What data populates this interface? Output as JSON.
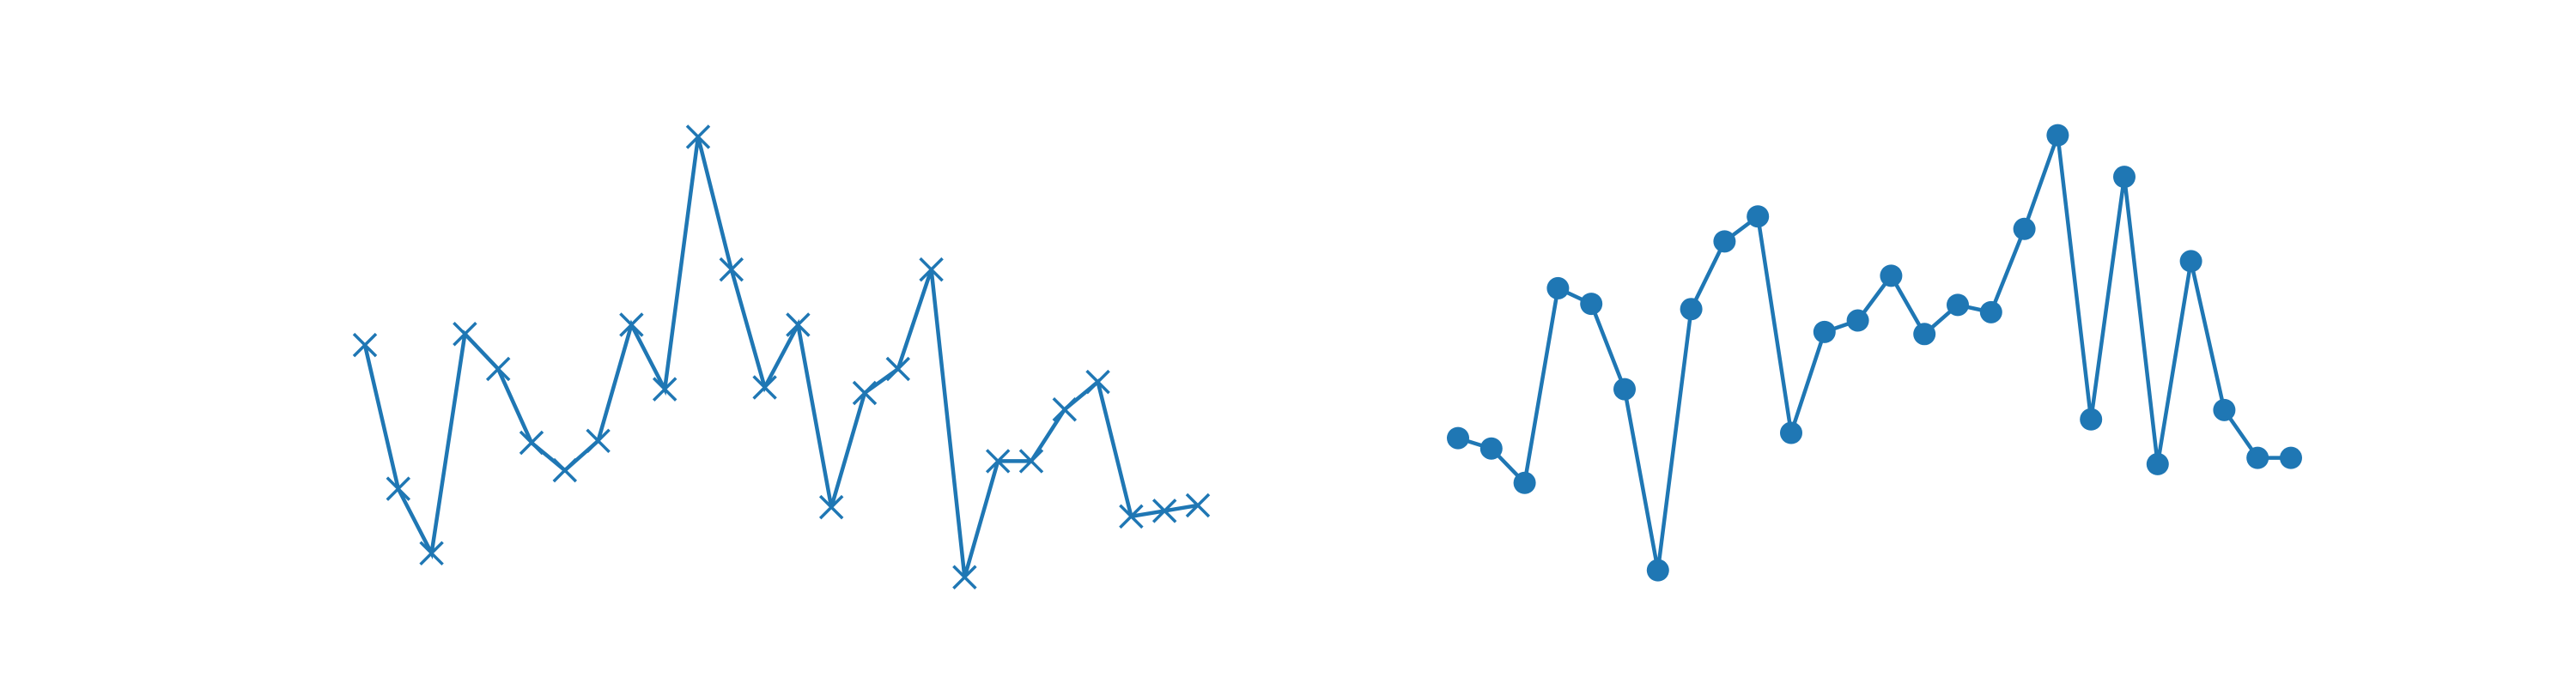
{
  "chart_data": [
    {
      "type": "line",
      "marker": "x",
      "color": "#1f77b4",
      "x": [
        0,
        1,
        2,
        3,
        4,
        5,
        6,
        7,
        8,
        9,
        10,
        11,
        12,
        13,
        14,
        15,
        16,
        17,
        18,
        19,
        20,
        21,
        22,
        23,
        24,
        25
      ],
      "values": [
        0.4,
        -0.38,
        -0.73,
        0.46,
        0.27,
        -0.13,
        -0.28,
        -0.12,
        0.51,
        0.16,
        1.53,
        0.81,
        0.17,
        0.51,
        -0.48,
        0.14,
        0.27,
        0.81,
        -0.86,
        -0.23,
        -0.23,
        0.05,
        0.2,
        -0.53,
        -0.5,
        -0.47
      ],
      "ylim": [
        -1.15,
        1.9
      ],
      "axes_visible": false,
      "grid": false
    },
    {
      "type": "line",
      "marker": "o",
      "color": "#1f77b4",
      "x": [
        0,
        1,
        2,
        3,
        4,
        5,
        6,
        7,
        8,
        9,
        10,
        11,
        12,
        13,
        14,
        15,
        16,
        17,
        18,
        19,
        20,
        21,
        22,
        23,
        24,
        25
      ],
      "values": [
        -0.85,
        -0.95,
        -1.28,
        0.59,
        0.44,
        -0.38,
        -2.12,
        0.39,
        1.04,
        1.28,
        -0.8,
        0.17,
        0.28,
        0.71,
        0.15,
        0.43,
        0.36,
        1.16,
        2.06,
        -0.67,
        1.66,
        -1.1,
        0.85,
        -0.58,
        -1.04,
        -1.04
      ],
      "ylim": [
        -2.7,
        2.7
      ],
      "axes_visible": false,
      "grid": false
    }
  ]
}
